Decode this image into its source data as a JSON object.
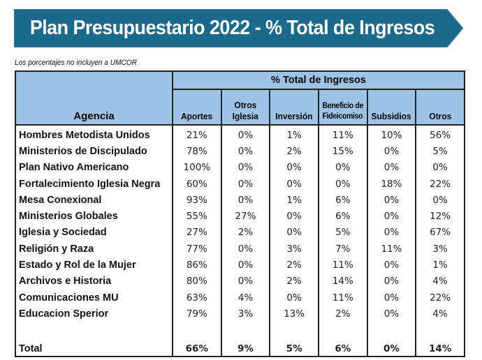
{
  "banner": {
    "title": "Plan Presupuestario 2022 - % Total de Ingresos",
    "color": "#1a6a8e"
  },
  "note": "Los porcentajes no incluyen a UMCOR",
  "table": {
    "agency_header": "Agencia",
    "group_header": "% Total de Ingresos",
    "columns": [
      [
        "Aportes"
      ],
      [
        "Otros",
        "Iglesia"
      ],
      [
        "Inversión"
      ],
      [
        "Beneficio de",
        "Fideicomiso"
      ],
      [
        "Subsidios"
      ],
      [
        "Otros"
      ]
    ],
    "header_color": "#9dc3e6",
    "rows": [
      {
        "agency": "Hombres Metodista Unidos",
        "values": [
          "21%",
          "0%",
          "1%",
          "11%",
          "10%",
          "56%"
        ]
      },
      {
        "agency": "Ministerios de Discipulado",
        "values": [
          "78%",
          "0%",
          "2%",
          "15%",
          "0%",
          "5%"
        ]
      },
      {
        "agency": "Plan Nativo Americano",
        "values": [
          "100%",
          "0%",
          "0%",
          "0%",
          "0%",
          "0%"
        ]
      },
      {
        "agency": "Fortalecimiento Iglesia Negra",
        "values": [
          "60%",
          "0%",
          "0%",
          "0%",
          "18%",
          "22%"
        ]
      },
      {
        "agency": "Mesa Conexional",
        "values": [
          "93%",
          "0%",
          "1%",
          "6%",
          "0%",
          "0%"
        ]
      },
      {
        "agency": "Ministerios Globales",
        "values": [
          "55%",
          "27%",
          "0%",
          "6%",
          "0%",
          "12%"
        ]
      },
      {
        "agency": "Iglesia y Sociedad",
        "values": [
          "27%",
          "2%",
          "0%",
          "5%",
          "0%",
          "67%"
        ]
      },
      {
        "agency": "Religión y Raza",
        "values": [
          "77%",
          "0%",
          "3%",
          "7%",
          "11%",
          "3%"
        ]
      },
      {
        "agency": "Estado y Rol de la Mujer",
        "values": [
          "86%",
          "0%",
          "2%",
          "11%",
          "0%",
          "1%"
        ]
      },
      {
        "agency": "Archivos e Historia",
        "values": [
          "80%",
          "0%",
          "2%",
          "14%",
          "0%",
          "4%"
        ]
      },
      {
        "agency": "Comunicaciones MU",
        "values": [
          "63%",
          "4%",
          "0%",
          "11%",
          "0%",
          "22%"
        ]
      },
      {
        "agency": "Educacion Sperior",
        "values": [
          "79%",
          "3%",
          "13%",
          "2%",
          "0%",
          "4%"
        ]
      }
    ],
    "total": {
      "label": "Total",
      "values": [
        "66%",
        "9%",
        "5%",
        "6%",
        "0%",
        "14%"
      ]
    }
  }
}
